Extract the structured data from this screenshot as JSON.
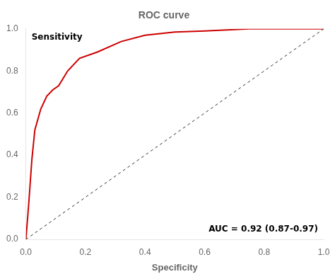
{
  "chart_data": {
    "type": "line",
    "title": "ROC curve",
    "xlabel": "Specificity",
    "ylabel": "Sensitivity",
    "annotation": "AUC = 0.92 (0.87-0.97)",
    "series": [
      {
        "x": [
          0.0,
          1.0
        ],
        "values": [
          0.0,
          1.0
        ],
        "color": "#333333",
        "line_style": "dashed"
      },
      {
        "x": [
          0.0,
          0.01,
          0.02,
          0.03,
          0.05,
          0.07,
          0.09,
          0.11,
          0.14,
          0.18,
          0.24,
          0.32,
          0.4,
          0.5,
          0.6,
          0.75,
          0.9,
          1.0
        ],
        "values": [
          0.0,
          0.18,
          0.38,
          0.52,
          0.62,
          0.68,
          0.71,
          0.73,
          0.8,
          0.86,
          0.89,
          0.94,
          0.97,
          0.985,
          0.99,
          1.0,
          1.0,
          1.0
        ],
        "color": "#cc0000",
        "line_style": "solid"
      }
    ],
    "xlim": [
      0.0,
      1.0
    ],
    "ylim": [
      0.0,
      1.0
    ],
    "xticks": [
      {
        "value": 0,
        "label": "0.0"
      },
      0.2,
      0.4,
      0.6,
      0.8,
      {
        "value": 1,
        "label": "1.0"
      }
    ],
    "yticks": [
      {
        "value": 0,
        "label": "0.0"
      },
      0.2,
      0.4,
      0.6,
      0.8,
      {
        "value": 1,
        "label": "1.0"
      }
    ],
    "grid": false,
    "legend": false
  }
}
